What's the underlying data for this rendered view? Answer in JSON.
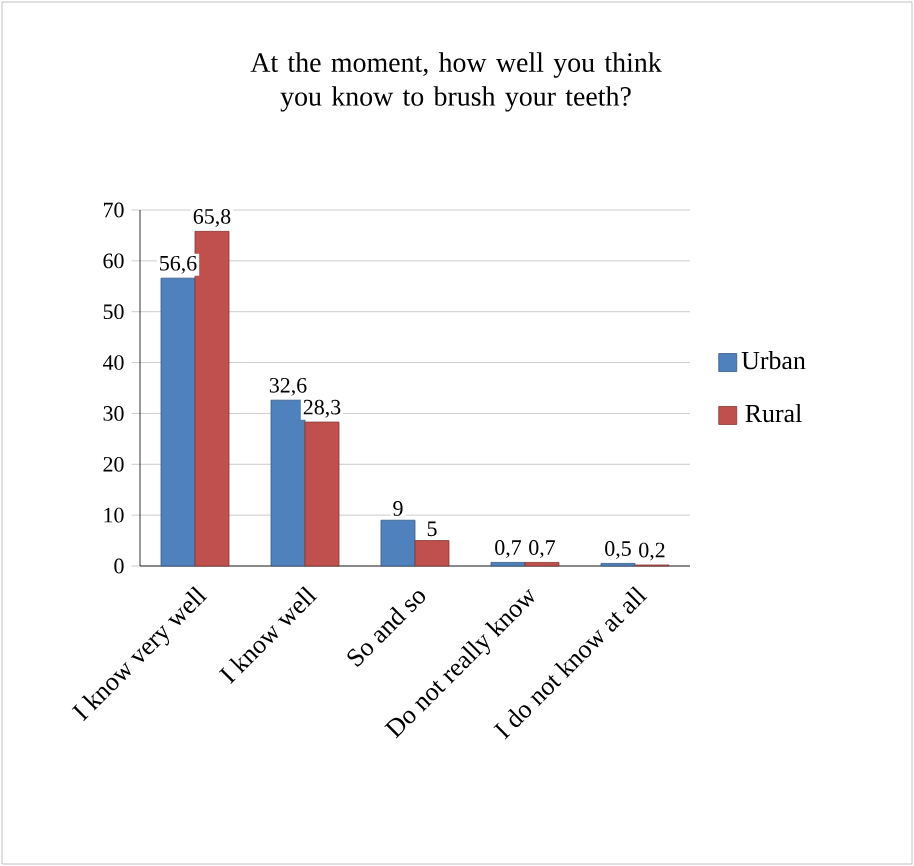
{
  "chart_data": {
    "type": "bar",
    "title": "At the moment, how well you think you know to brush your teeth?",
    "categories": [
      "I know very well",
      "I know well",
      "So and so",
      "Do not really know",
      "I do not know at all"
    ],
    "series": [
      {
        "name": "Urban",
        "color": "#4f81bd",
        "values": [
          56.6,
          32.6,
          9,
          0.7,
          0.5
        ],
        "value_labels": [
          "56,6",
          "32,6",
          "9",
          "0,7",
          "0,5"
        ]
      },
      {
        "name": "Rural",
        "color": "#c0504d",
        "values": [
          65.8,
          28.3,
          5,
          0.7,
          0.2
        ],
        "value_labels": [
          "65,8",
          "28,3",
          "5",
          "0,7",
          "0,2"
        ]
      }
    ],
    "ylim": [
      0,
      70
    ],
    "yticks": [
      0,
      10,
      20,
      30,
      40,
      50,
      60,
      70
    ],
    "grid": "y",
    "legend": "right"
  }
}
